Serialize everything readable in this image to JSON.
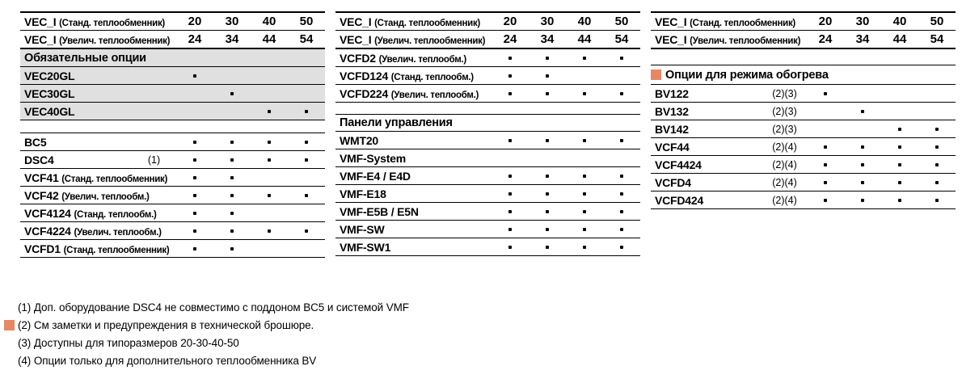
{
  "colors": {
    "accent_orange": "#E98764",
    "row_gray": "#E0E0E0",
    "text_black": "#000000"
  },
  "tables": [
    {
      "name": "table-mandatory-and-main-options",
      "header": {
        "rows": [
          {
            "label": "VEC_I",
            "sublabel": "(Станд. теплообменник)",
            "values": [
              "20",
              "30",
              "40",
              "50"
            ]
          },
          {
            "label": "VEC_I",
            "sublabel": "(Увелич. теплообменник)",
            "values": [
              "24",
              "34",
              "44",
              "54"
            ]
          }
        ]
      },
      "sections": [
        {
          "style": "gray",
          "title": "Обязательные опции",
          "marker": false,
          "rows": [
            {
              "label": "VEC20GL",
              "sublabel": "",
              "note": "",
              "dots": [
                1,
                0,
                0,
                0
              ]
            },
            {
              "label": "VEC30GL",
              "sublabel": "",
              "note": "",
              "dots": [
                0,
                1,
                0,
                0
              ]
            },
            {
              "label": "VEC40GL",
              "sublabel": "",
              "note": "",
              "dots": [
                0,
                0,
                1,
                1
              ]
            }
          ]
        },
        {
          "style": "plain",
          "title": "",
          "marker": false,
          "rows": [
            {
              "label": "BC5",
              "sublabel": "",
              "note": "",
              "dots": [
                1,
                1,
                1,
                1
              ]
            },
            {
              "label": "DSC4",
              "sublabel": "",
              "note": "(1)",
              "dots": [
                1,
                1,
                1,
                1
              ]
            },
            {
              "label": "VCF41",
              "sublabel": "(Станд. теплообменник)",
              "note": "",
              "dots": [
                1,
                1,
                0,
                0
              ]
            },
            {
              "label": "VCF42",
              "sublabel": "(Увелич. теплообм.)",
              "note": "",
              "dots": [
                1,
                1,
                1,
                1
              ]
            },
            {
              "label": "VCF4124",
              "sublabel": "(Станд. теплообм.)",
              "note": "",
              "dots": [
                1,
                1,
                0,
                0
              ]
            },
            {
              "label": "VCF4224",
              "sublabel": "(Увелич. теплообм.)",
              "note": "",
              "dots": [
                1,
                1,
                1,
                1
              ]
            },
            {
              "label": "VCFD1",
              "sublabel": "(Станд. теплообменник)",
              "note": "",
              "dots": [
                1,
                1,
                0,
                0
              ]
            }
          ]
        }
      ]
    },
    {
      "name": "table-options-and-control-panels",
      "header": {
        "rows": [
          {
            "label": "VEC_I",
            "sublabel": "(Станд. теплообменник)",
            "values": [
              "20",
              "30",
              "40",
              "50"
            ]
          },
          {
            "label": "VEC_I",
            "sublabel": "(Увелич. теплообменник)",
            "values": [
              "24",
              "34",
              "44",
              "54"
            ]
          }
        ]
      },
      "sections": [
        {
          "style": "plain",
          "title": "",
          "marker": false,
          "rows": [
            {
              "label": "VCFD2",
              "sublabel": "(Увелич. теплообм.)",
              "note": "",
              "dots": [
                1,
                1,
                1,
                1
              ]
            },
            {
              "label": "VCFD124",
              "sublabel": "(Станд. теплообм.)",
              "note": "",
              "dots": [
                1,
                1,
                0,
                0
              ]
            },
            {
              "label": "VCFD224",
              "sublabel": "(Увелич. теплообм.)",
              "note": "",
              "dots": [
                1,
                1,
                1,
                1
              ]
            }
          ]
        },
        {
          "style": "plain",
          "title": "Панели управления",
          "marker": false,
          "rows": [
            {
              "label": "WMT20",
              "sublabel": "",
              "note": "",
              "dots": [
                1,
                1,
                1,
                1
              ]
            },
            {
              "label": "VMF-System",
              "sublabel": "",
              "note": "",
              "dots": [
                0,
                0,
                0,
                0
              ]
            },
            {
              "label": "VMF-E4 / E4D",
              "sublabel": "",
              "note": "",
              "dots": [
                1,
                1,
                1,
                1
              ]
            },
            {
              "label": "VMF-E18",
              "sublabel": "",
              "note": "",
              "dots": [
                1,
                1,
                1,
                1
              ]
            },
            {
              "label": "VMF-E5B / E5N",
              "sublabel": "",
              "note": "",
              "dots": [
                1,
                1,
                1,
                1
              ]
            },
            {
              "label": "VMF-SW",
              "sublabel": "",
              "note": "",
              "dots": [
                1,
                1,
                1,
                1
              ]
            },
            {
              "label": "VMF-SW1",
              "sublabel": "",
              "note": "",
              "dots": [
                1,
                1,
                1,
                1
              ]
            }
          ]
        }
      ]
    },
    {
      "name": "table-heating-mode-options",
      "header": {
        "rows": [
          {
            "label": "VEC_I",
            "sublabel": "(Станд. теплообменник)",
            "values": [
              "20",
              "30",
              "40",
              "50"
            ]
          },
          {
            "label": "VEC_I",
            "sublabel": "(Увелич. теплообменник)",
            "values": [
              "24",
              "34",
              "44",
              "54"
            ]
          }
        ]
      },
      "sections": [
        {
          "style": "plain",
          "title": "Опции для режима обогрева",
          "marker": true,
          "rows": [
            {
              "label": "BV122",
              "sublabel": "",
              "note": "(2)(3)",
              "dots": [
                1,
                0,
                0,
                0
              ]
            },
            {
              "label": "BV132",
              "sublabel": "",
              "note": "(2)(3)",
              "dots": [
                0,
                1,
                0,
                0
              ]
            },
            {
              "label": "BV142",
              "sublabel": "",
              "note": "(2)(3)",
              "dots": [
                0,
                0,
                1,
                1
              ]
            },
            {
              "label": "VCF44",
              "sublabel": "",
              "note": "(2)(4)",
              "dots": [
                1,
                1,
                1,
                1
              ]
            },
            {
              "label": "VCF4424",
              "sublabel": "",
              "note": "(2)(4)",
              "dots": [
                1,
                1,
                1,
                1
              ]
            },
            {
              "label": "VCFD4",
              "sublabel": "",
              "note": "(2)(4)",
              "dots": [
                1,
                1,
                1,
                1
              ]
            },
            {
              "label": "VCFD424",
              "sublabel": "",
              "note": "(2)(4)",
              "dots": [
                1,
                1,
                1,
                1
              ]
            }
          ]
        }
      ]
    }
  ],
  "footnotes": [
    {
      "marker": false,
      "text": "(1) Доп. оборудование DSC4 не совместимо с поддоном BC5 и системой VMF"
    },
    {
      "marker": true,
      "text": "(2) См заметки и предупреждения в технической брошюре."
    },
    {
      "marker": false,
      "text": "(3) Доступны для типоразмеров 20-30-40-50"
    },
    {
      "marker": false,
      "text": "(4) Опции только для дополнительного теплообменника BV"
    }
  ]
}
